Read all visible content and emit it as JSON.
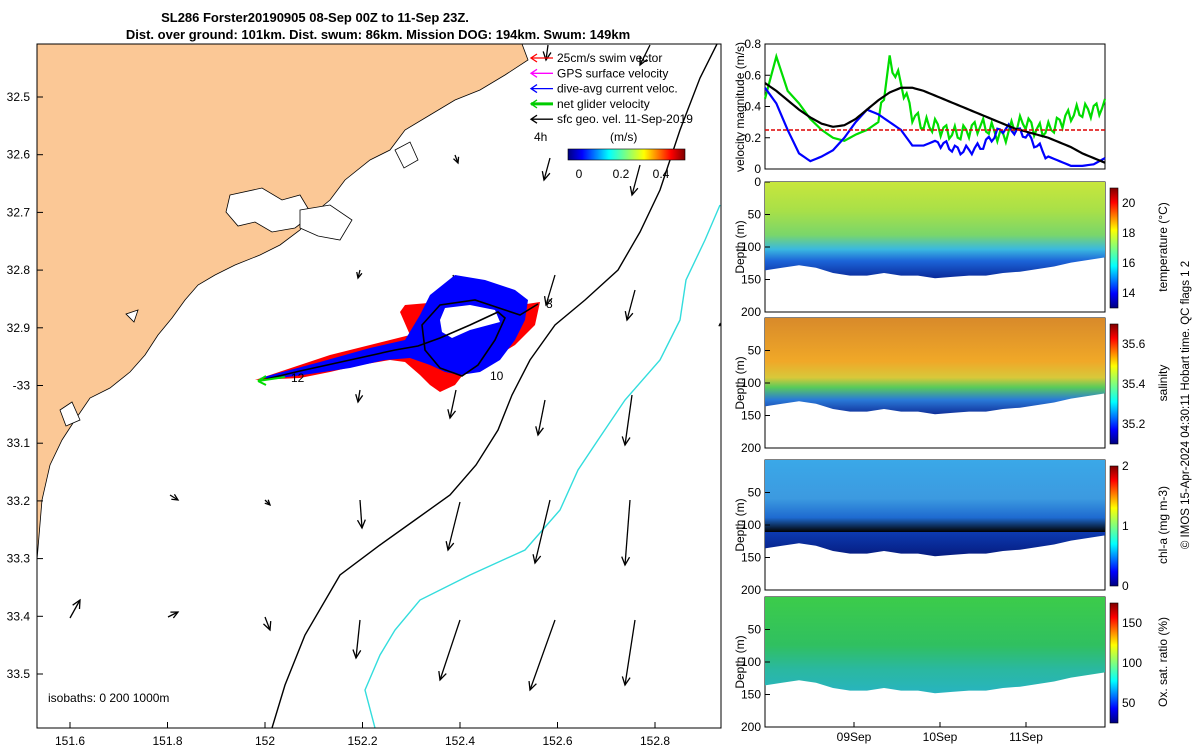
{
  "header": {
    "line1": "SL286 Forster20190905 08-Sep 00Z to 11-Sep 23Z.",
    "line2": "Dist. over ground: 101km. Dist. swum: 86km. Mission DOG: 194km. Swum: 149km"
  },
  "map": {
    "lon_ticks": [
      "151.6",
      "151.8",
      "152",
      "152.2",
      "152.4",
      "152.6",
      "152.8"
    ],
    "lat_ticks": [
      "32.5",
      "32.6",
      "32.7",
      "32.8",
      "32.9",
      "-33",
      "33.1",
      "33.2",
      "33.3",
      "33.4",
      "33.5"
    ],
    "legend": {
      "items": [
        {
          "label": "25cm/s swim vector",
          "color": "#ff0000"
        },
        {
          "label": "GPS surface velocity",
          "color": "#ff00ff"
        },
        {
          "label": "dive-avg current veloc.",
          "color": "#0000ff"
        },
        {
          "label": "net glider velocity",
          "color": "#00cc00"
        },
        {
          "label": "sfc geo. vel. 11-Sep-2019",
          "color": "#000000"
        }
      ],
      "hint": "4h"
    },
    "colorbar": {
      "label": "(m/s)",
      "ticks": [
        "0",
        "0.2",
        "0.4"
      ]
    },
    "track_labels": [
      "8",
      "10",
      "12"
    ],
    "isobaths": "isobaths: 0   200  1000m",
    "colors": {
      "land": "#fbc896",
      "iso200": "#000000",
      "iso1000": "#33dddd"
    }
  },
  "chart_data": [
    {
      "type": "line",
      "ylabel": "velocity magnitude (m/s)",
      "ylim": [
        0,
        0.8
      ],
      "yticks": [
        "0",
        "0.2",
        "0.4",
        "0.6",
        "0.8"
      ],
      "x_range_days": [
        "08-Sep 00Z",
        "11-Sep 23Z"
      ],
      "series": [
        {
          "color": "#00dd00",
          "values": [
            0.45,
            0.72,
            0.5,
            0.42,
            0.32,
            0.25,
            0.2,
            0.18,
            0.22,
            0.25,
            0.3,
            0.68,
            0.55,
            0.35,
            0.28,
            0.28,
            0.24,
            0.22,
            0.25,
            0.28,
            0.25,
            0.2,
            0.28,
            0.3,
            0.25,
            0.25,
            0.3,
            0.35,
            0.37,
            0.38,
            0.4
          ]
        },
        {
          "color": "#0000ff",
          "values": [
            0.52,
            0.42,
            0.25,
            0.1,
            0.05,
            0.08,
            0.12,
            0.2,
            0.3,
            0.38,
            0.35,
            0.3,
            0.25,
            0.15,
            0.15,
            0.18,
            0.15,
            0.12,
            0.12,
            0.14,
            0.2,
            0.26,
            0.25,
            0.22,
            0.15,
            0.08,
            0.05,
            0.02,
            0.02,
            0.03,
            0.07
          ]
        },
        {
          "color": "#000000",
          "values": [
            0.55,
            0.5,
            0.44,
            0.38,
            0.33,
            0.29,
            0.27,
            0.28,
            0.32,
            0.38,
            0.44,
            0.49,
            0.52,
            0.52,
            0.5,
            0.47,
            0.44,
            0.41,
            0.38,
            0.35,
            0.32,
            0.29,
            0.26,
            0.24,
            0.22,
            0.2,
            0.17,
            0.14,
            0.1,
            0.07,
            0.04
          ]
        },
        {
          "color": "#dd0000",
          "values": [
            0.25,
            0.25
          ]
        }
      ]
    },
    {
      "type": "heatmap",
      "ylabel": "Depth (m)",
      "cblabel": "temperature (°C)",
      "yticks": [
        "0",
        "50",
        "100",
        "150",
        "200"
      ],
      "cbticks": [
        "14",
        "16",
        "18",
        "20"
      ],
      "cbrange": [
        13,
        21
      ]
    },
    {
      "type": "heatmap",
      "ylabel": "Depth (m)",
      "cblabel": "salinity",
      "yticks": [
        "50",
        "100",
        "150",
        "200"
      ],
      "cbticks": [
        "35.2",
        "35.4",
        "35.6"
      ],
      "cbrange": [
        35.1,
        35.7
      ]
    },
    {
      "type": "heatmap",
      "ylabel": "Depth (m)",
      "cblabel": "chl-a (mg m-3)",
      "yticks": [
        "50",
        "100",
        "150",
        "200"
      ],
      "cbticks": [
        "0",
        "1",
        "2"
      ],
      "cbrange": [
        0,
        2
      ]
    },
    {
      "type": "heatmap",
      "ylabel": "Depth (m)",
      "cblabel": "Ox. sat. ratio (%)",
      "yticks": [
        "50",
        "100",
        "150",
        "200"
      ],
      "cbticks": [
        "50",
        "100",
        "150"
      ],
      "cbrange": [
        25,
        175
      ],
      "xticks": [
        "09Sep",
        "10Sep",
        "11Sep"
      ]
    }
  ],
  "side_note": "© IMOS 15-Apr-2024 04:30:11 Hobart time. QC flags 1  2"
}
